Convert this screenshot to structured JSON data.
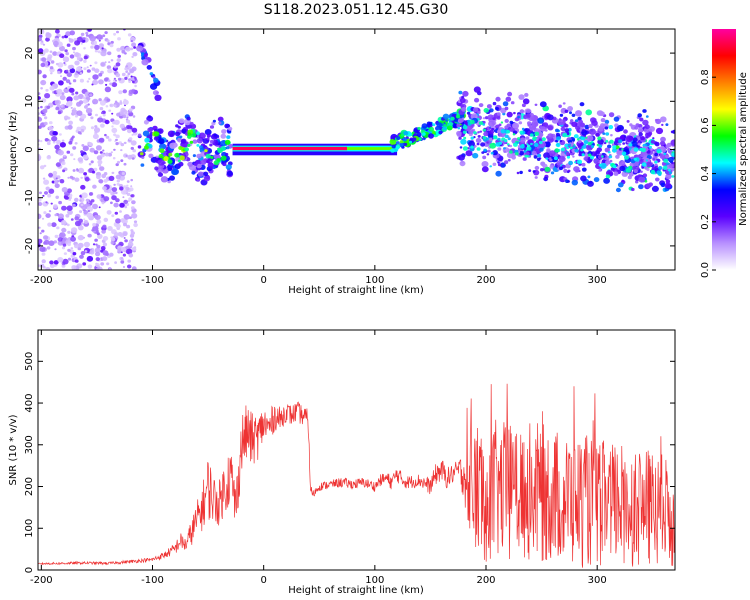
{
  "figure": {
    "title": "S118.2023.051.12.45.G30"
  },
  "chart_data": [
    {
      "type": "heatmap",
      "xlabel": "Height of straight line (km)",
      "ylabel": "Frequency (Hz)",
      "xlim": [
        -203,
        370
      ],
      "ylim": [
        -25,
        25
      ],
      "xticks": [
        -200,
        -100,
        0,
        100,
        200,
        300
      ],
      "yticks": [
        -20,
        -10,
        0,
        10,
        20
      ],
      "colorbar": {
        "label": "Normalized spectral amplitude",
        "range": [
          0,
          1
        ],
        "ticks": [
          0.0,
          0.2,
          0.4,
          0.6,
          0.8
        ],
        "colormap": [
          "#ffffff",
          "#b890ff",
          "#5a00ff",
          "#0000ff",
          "#00ffff",
          "#00ff00",
          "#ffff00",
          "#ff8000",
          "#ff0000",
          "#ff00a0"
        ]
      },
      "features": [
        {
          "x_range": [
            -203,
            -115
          ],
          "freq_range": [
            -25,
            25
          ],
          "amplitude": 0.12
        },
        {
          "x_range": [
            -115,
            -30
          ],
          "freq_range": [
            -10,
            22
          ],
          "amplitude": 0.3
        },
        {
          "x_range": [
            -30,
            120
          ],
          "freq_center": 0.2,
          "amplitude": 0.95
        },
        {
          "x_range": [
            120,
            180
          ],
          "freq_range": [
            0,
            7
          ],
          "amplitude": 0.55
        },
        {
          "x_range": [
            180,
            370
          ],
          "freq_range": [
            -8,
            12
          ],
          "amplitude": 0.3
        }
      ]
    },
    {
      "type": "line",
      "xlabel": "Height of straight line (km)",
      "ylabel": "SNR (10 * v/v)",
      "xlim": [
        -203,
        370
      ],
      "ylim": [
        0,
        575
      ],
      "xticks": [
        -200,
        -100,
        0,
        100,
        200,
        300
      ],
      "yticks": [
        0,
        100,
        200,
        300,
        400,
        500
      ],
      "color": "#ee3333",
      "series": [
        {
          "x": [
            -203,
            -180,
            -160,
            -140,
            -120,
            -100,
            -90,
            -80,
            -75,
            -70,
            -60,
            -55,
            -50,
            -45,
            -40,
            -35,
            -30,
            -25,
            -20,
            -15,
            -10,
            -5,
            0,
            5,
            10,
            15,
            20,
            25,
            30,
            35,
            40,
            42,
            44,
            50,
            60,
            70,
            80,
            90,
            100,
            105,
            110,
            115,
            120,
            125,
            130,
            140,
            150,
            155,
            160,
            165,
            170,
            175,
            180,
            185,
            190,
            200,
            220,
            240,
            260,
            280,
            300,
            320,
            340,
            360,
            370
          ],
          "y": [
            15,
            16,
            17,
            16,
            20,
            25,
            35,
            50,
            70,
            60,
            120,
            150,
            200,
            170,
            160,
            200,
            230,
            150,
            300,
            330,
            310,
            320,
            350,
            340,
            370,
            360,
            380,
            370,
            380,
            370,
            360,
            200,
            180,
            200,
            205,
            210,
            205,
            210,
            200,
            215,
            220,
            210,
            230,
            215,
            210,
            215,
            200,
            230,
            240,
            220,
            230,
            240,
            230,
            210,
            190,
            190,
            190,
            190,
            180,
            170,
            160,
            160,
            150,
            140,
            130
          ],
          "spread": [
            2,
            3,
            3,
            3,
            4,
            5,
            8,
            14,
            20,
            18,
            45,
            55,
            80,
            60,
            55,
            65,
            80,
            60,
            75,
            70,
            65,
            55,
            45,
            40,
            35,
            30,
            25,
            25,
            25,
            25,
            25,
            12,
            10,
            10,
            10,
            12,
            12,
            12,
            12,
            14,
            16,
            18,
            20,
            18,
            16,
            16,
            20,
            26,
            28,
            26,
            24,
            24,
            60,
            130,
            170,
            175,
            165,
            170,
            165,
            165,
            155,
            150,
            145,
            140,
            135
          ]
        }
      ]
    }
  ]
}
